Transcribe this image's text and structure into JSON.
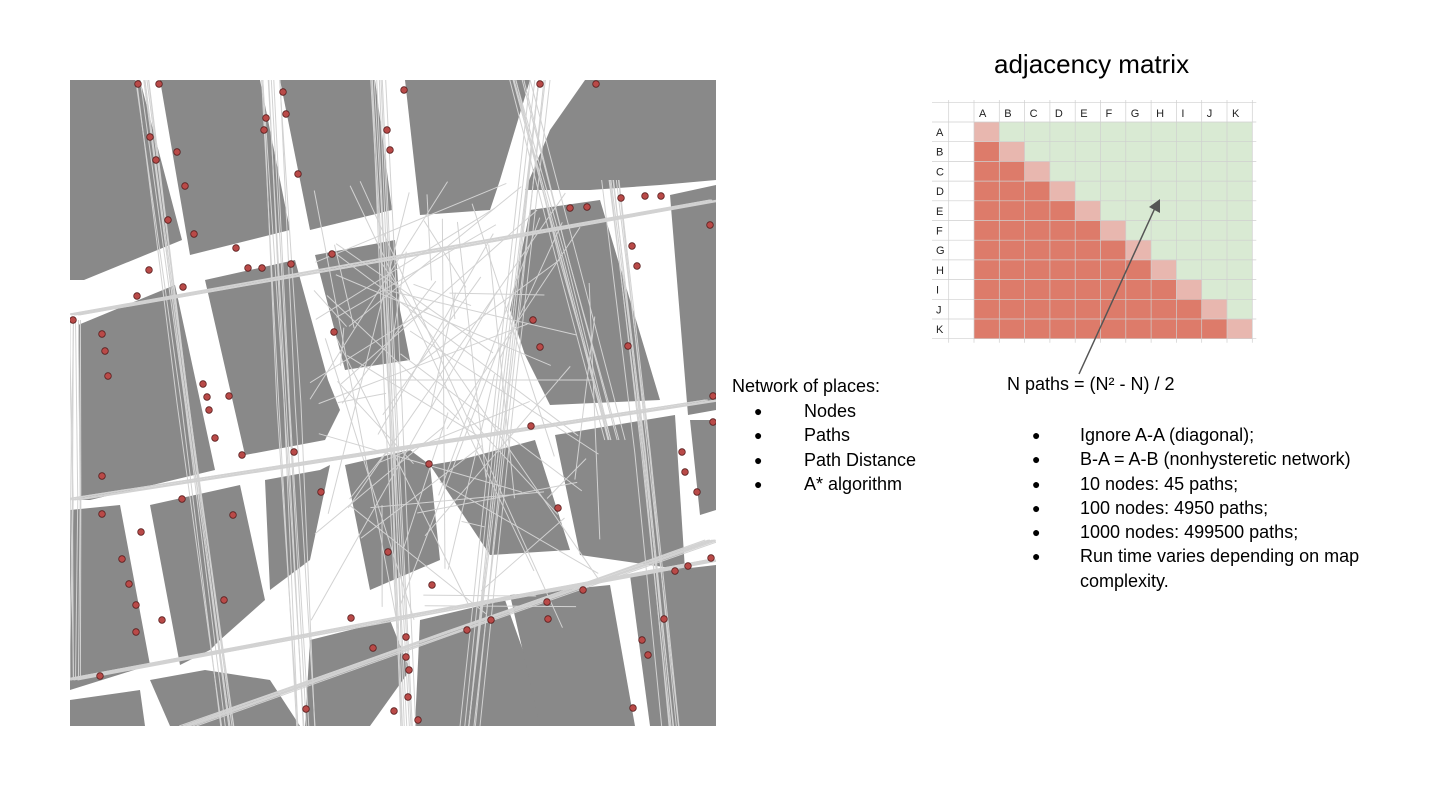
{
  "matrix": {
    "title": "adjacency matrix",
    "labels": [
      "A",
      "B",
      "C",
      "D",
      "E",
      "F",
      "G",
      "H",
      "I",
      "J",
      "K"
    ],
    "formula": "N paths = (N² - N) / 2",
    "colors": {
      "lower": "#dd7b6a",
      "diagonal": "#e8b7af",
      "upper": "#d9ead3",
      "grid": "#cfcfcf"
    }
  },
  "legend": {
    "heading": "Network of places:",
    "items": [
      "Nodes",
      "Paths",
      "Path Distance",
      "A* algorithm"
    ]
  },
  "notes": {
    "items": [
      "Ignore A-A (diagonal);",
      "B-A = A-B (nonhysteretic network)",
      "10 nodes: 45 paths;",
      "100 nodes: 4950 paths;",
      "1000 nodes: 499500 paths;",
      "Run time varies depending on map complexity."
    ]
  },
  "map": {
    "colors": {
      "block": "#898989",
      "path": "#d2d2d2",
      "node_fill": "#b94a48",
      "node_stroke": "#5a1f1f"
    }
  }
}
